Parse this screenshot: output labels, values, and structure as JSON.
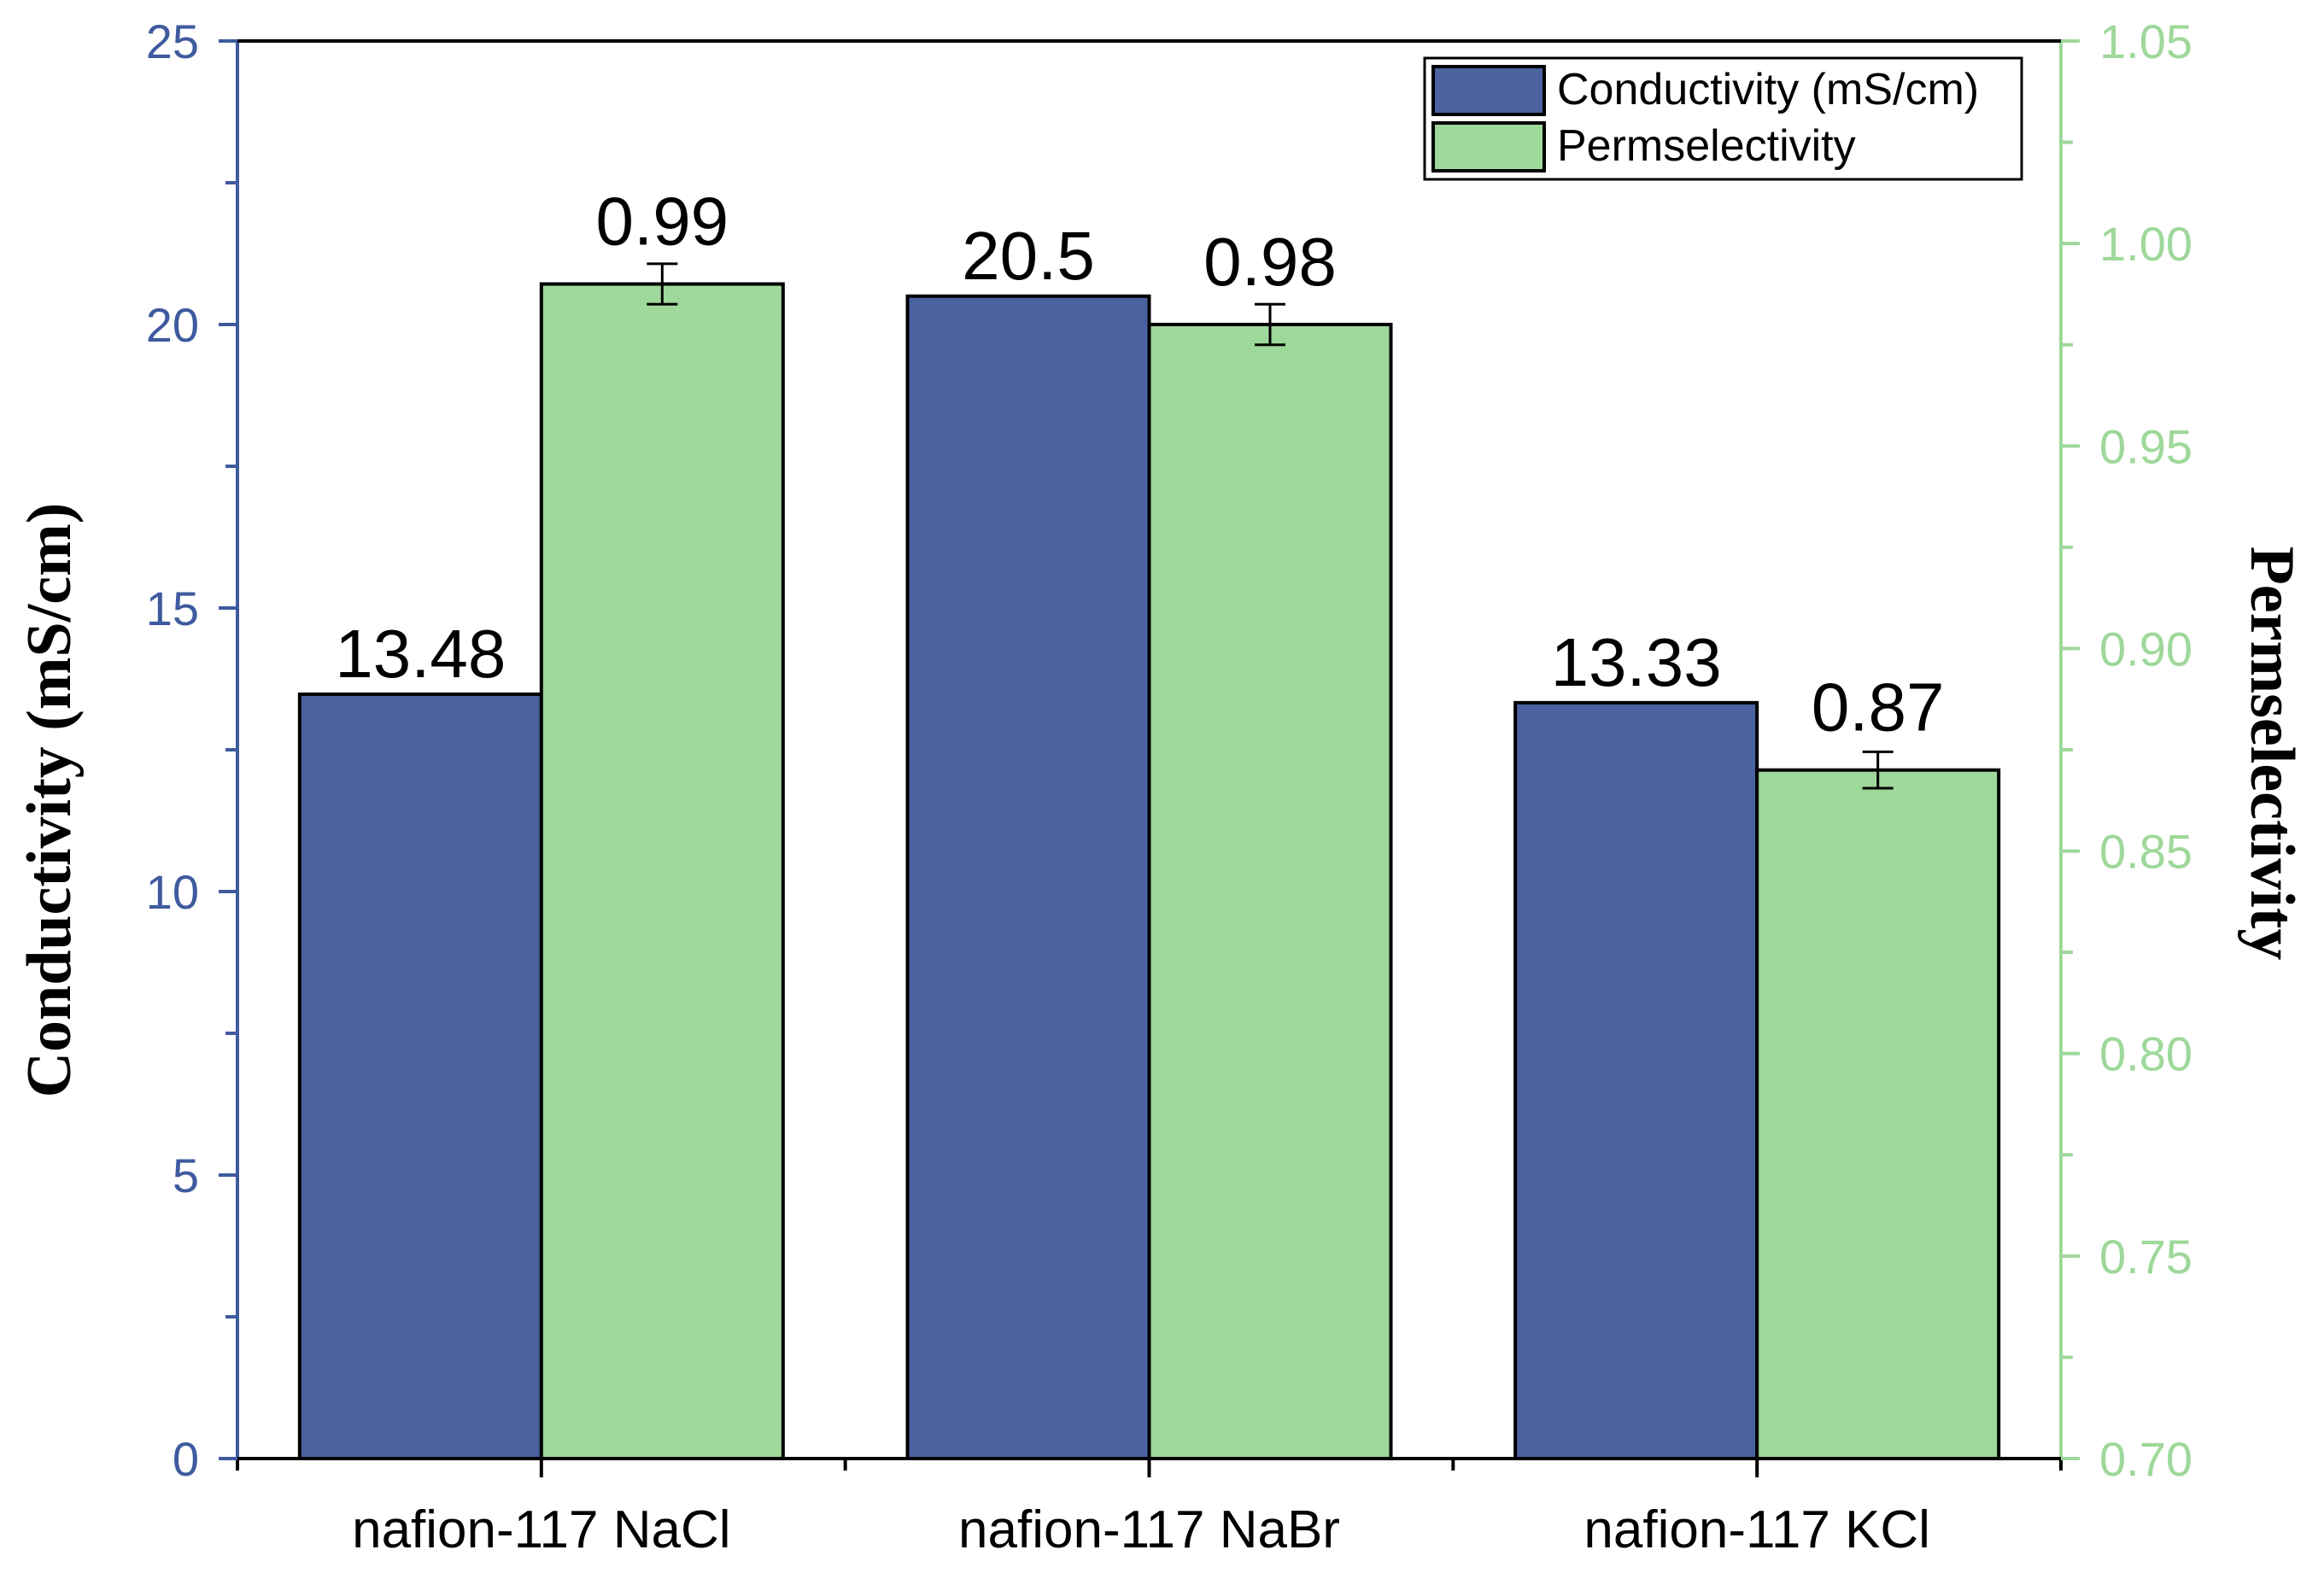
{
  "chart_data": {
    "type": "bar",
    "title": "",
    "xlabel": "",
    "categories": [
      "nafion-117 NaCl",
      "nafion-117 NaBr",
      "nafion-117 KCl"
    ],
    "y_left": {
      "label": "Conductivity (mS/cm)",
      "ylim": [
        0,
        25
      ],
      "major_ticks": [
        0,
        5,
        10,
        15,
        20,
        25
      ],
      "tick_labels": [
        "0",
        "5",
        "10",
        "15",
        "20",
        "25"
      ],
      "color": "#3f5a9e"
    },
    "y_right": {
      "label": "Permselectivity",
      "ylim": [
        0.7,
        1.05
      ],
      "major_ticks": [
        0.7,
        0.75,
        0.8,
        0.85,
        0.9,
        0.95,
        1.0,
        1.05
      ],
      "tick_labels": [
        "0.70",
        "0.75",
        "0.80",
        "0.85",
        "0.90",
        "0.95",
        "1.00",
        "1.05"
      ],
      "color": "#9ed89a"
    },
    "series": [
      {
        "name": "Conductivity (mS/cm)",
        "axis": "left",
        "color": "#4a62a0",
        "values": [
          13.48,
          20.5,
          13.33
        ],
        "data_labels": [
          "13.48",
          "20.5",
          "13.33"
        ]
      },
      {
        "name": "Permselectivity",
        "axis": "right",
        "color": "#9ed89a",
        "values": [
          0.99,
          0.98,
          0.87
        ],
        "errors": [
          0.005,
          0.005,
          0.0045
        ],
        "data_labels": [
          "0.99",
          "0.98",
          "0.87"
        ]
      }
    ],
    "legend": {
      "position": "top-right",
      "entries": [
        "Conductivity (mS/cm)",
        "Permselectivity"
      ]
    },
    "grid": false
  }
}
